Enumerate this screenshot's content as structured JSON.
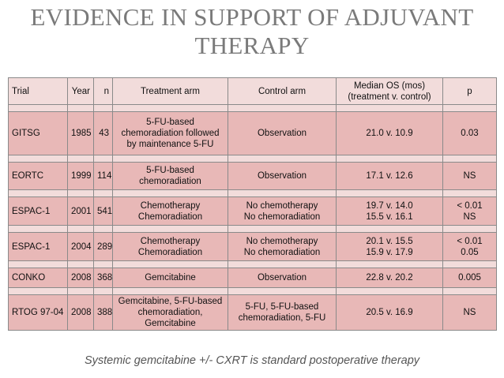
{
  "title": "EVIDENCE IN SUPPORT OF ADJUVANT THERAPY",
  "table": {
    "columns": [
      "Trial",
      "Year",
      "n",
      "Treatment arm",
      "Control arm",
      "Median OS (mos) (treatment v. control)",
      "p"
    ],
    "rows": [
      [
        "GITSG",
        "1985",
        "43",
        "5-FU-based chemoradiation followed by maintenance 5-FU",
        "Observation",
        "21.0 v. 10.9",
        "0.03"
      ],
      [
        "EORTC",
        "1999",
        "114",
        "5-FU-based chemoradiation",
        "Observation",
        "17.1 v. 12.6",
        "NS"
      ],
      [
        "ESPAC-1",
        "2001",
        "541",
        [
          "Chemotherapy",
          "Chemoradiation"
        ],
        [
          "No chemotherapy",
          "No chemoradiation"
        ],
        [
          "19.7 v. 14.0",
          "15.5 v. 16.1"
        ],
        [
          "< 0.01",
          "NS"
        ]
      ],
      [
        "ESPAC-1",
        "2004",
        "289",
        [
          "Chemotherapy",
          "Chemoradiation"
        ],
        [
          "No chemotherapy",
          "No chemoradiation"
        ],
        [
          "20.1 v. 15.5",
          "15.9 v. 17.9"
        ],
        [
          "< 0.01",
          "0.05"
        ]
      ],
      [
        "CONKO",
        "2008",
        "368",
        "Gemcitabine",
        "Observation",
        "22.8 v. 20.2",
        "0.005"
      ],
      [
        "RTOG 97-04",
        "2008",
        "388",
        "Gemcitabine, 5-FU-based chemoradiation, Gemcitabine",
        "5-FU, 5-FU-based chemoradiation, 5-FU",
        "20.5 v. 16.9",
        "NS"
      ]
    ]
  },
  "footer": "Systemic gemcitabine +/- CXRT is standard postoperative therapy"
}
